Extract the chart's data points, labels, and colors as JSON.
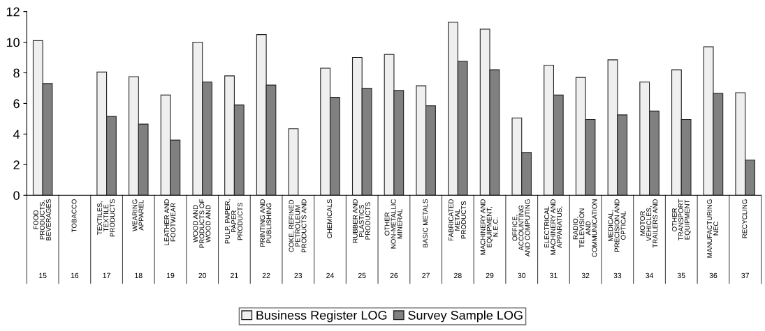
{
  "chart_data": {
    "type": "bar",
    "categories": [
      "FOOD PRODUCTS, BEVERAGES\n15",
      "TOBACCO\n16",
      "TEXTILES, TEXTILE PRODUCTS\n17",
      "WEARING APPAREL\n18",
      "LEATHER AND FOOTWEAR\n19",
      "WOOD AND PRODUCTS OF WOOD AND\n20",
      "PULP, PAPER, PAPER PRODUCTS\n21",
      "PRINTING AND PUBLISHING\n22",
      "COKE, REFINED PETROLEUM PRODUCTS AND\n23",
      "CHEMICALS\n24",
      "RUBBER AND PLASTICS PRODUCTS\n25",
      "OTHER NON-METALLIC MINERAL\n26",
      "BASIC METALS\n27",
      "FABRICATED METAL PRODUCTS\n28",
      "MACHINERY AND EQUIPMENT, N.E.C.\n29",
      "OFFICE, ACCOUNTING AND COMPUTING\n30",
      "ELECTRICAL MACHINERY AND APPARATUS,\n31",
      "RADIO, TELEVISION AND COMMUNICATION\n32",
      "MEDICAL, PRECISION AND OPTICAL\n33",
      "MOTOR VEHICLES, TRAILERS AND\n34",
      "OTHER TRANSPORT EQUIPMENT\n35",
      "MANUFACTURING NEC\n36",
      "RECYCLING\n37"
    ],
    "series": [
      {
        "name": "Business Register LOG",
        "color": "#efefef",
        "values": [
          10.1,
          null,
          8.05,
          7.75,
          6.55,
          10.0,
          7.8,
          10.5,
          4.35,
          8.3,
          9.0,
          9.2,
          7.15,
          11.3,
          10.85,
          5.05,
          8.5,
          7.7,
          8.85,
          7.4,
          8.2,
          9.7,
          6.7
        ]
      },
      {
        "name": "Survey Sample LOG",
        "color": "#808080",
        "values": [
          7.3,
          null,
          5.15,
          4.65,
          3.6,
          7.4,
          5.9,
          7.2,
          null,
          6.4,
          7.0,
          6.85,
          5.85,
          8.75,
          8.2,
          2.8,
          6.55,
          4.95,
          5.25,
          5.5,
          4.95,
          6.65,
          2.3
        ]
      }
    ],
    "ylim": [
      0,
      12
    ],
    "yticks": [
      0,
      2,
      4,
      6,
      8,
      10,
      12
    ],
    "grid": false,
    "legend": "bottom"
  }
}
